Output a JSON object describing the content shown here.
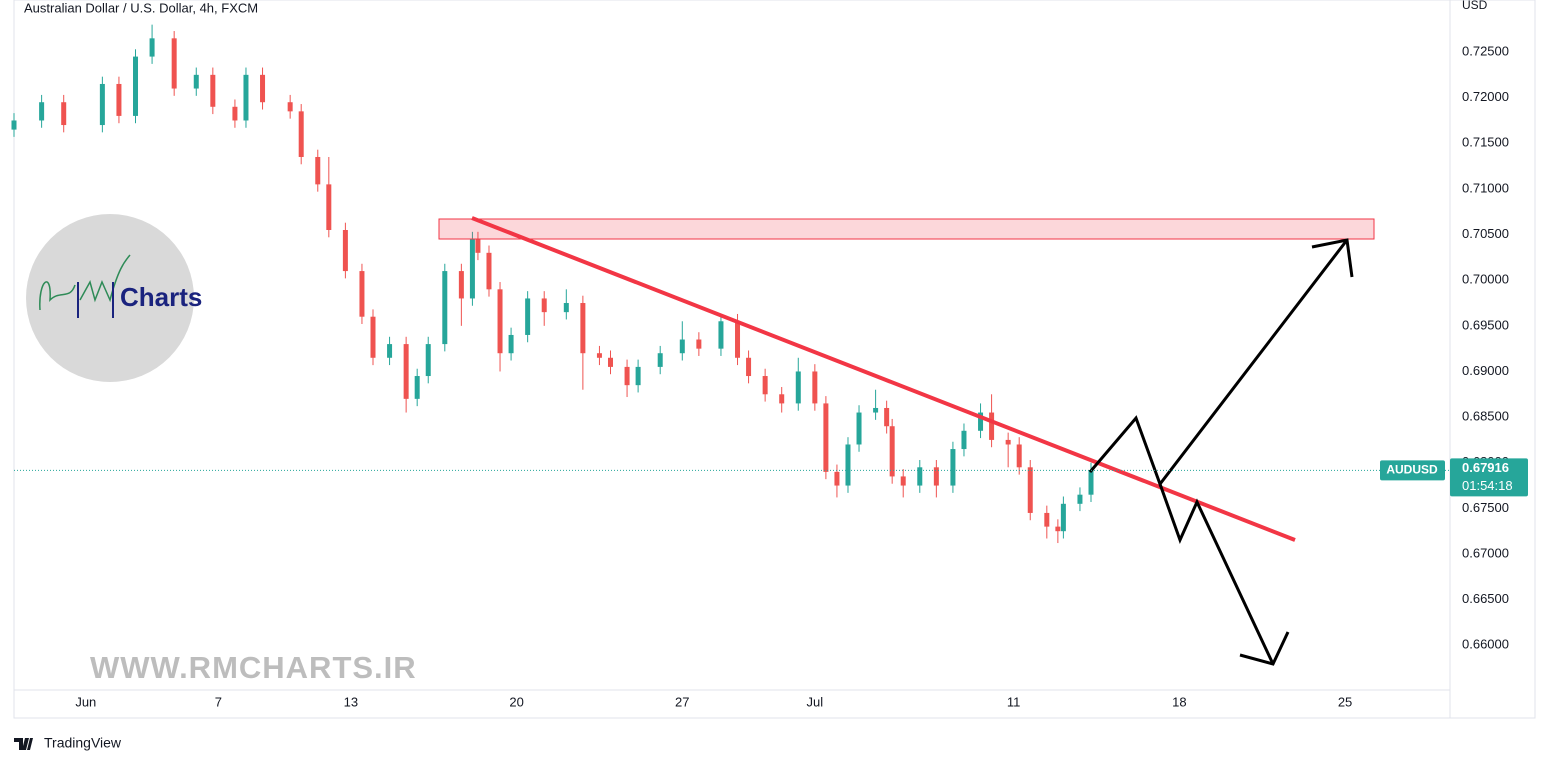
{
  "chart_data": {
    "type": "candlestick",
    "title": "Australian Dollar / U.S. Dollar, 4h, FXCM",
    "y_axis_label": "USD",
    "up_color": "#26a69a",
    "down_color": "#ef5350",
    "xlim": [
      0,
      260
    ],
    "ylim": [
      0.6551,
      0.7307
    ],
    "xticks": [
      {
        "value": 13,
        "label": "Jun"
      },
      {
        "value": 37,
        "label": "7"
      },
      {
        "value": 61,
        "label": "13"
      },
      {
        "value": 91,
        "label": "20"
      },
      {
        "value": 121,
        "label": "27"
      },
      {
        "value": 145,
        "label": "Jul"
      },
      {
        "value": 181,
        "label": "11"
      },
      {
        "value": 211,
        "label": "18"
      },
      {
        "value": 241,
        "label": "25"
      }
    ],
    "yticks": [
      {
        "value": 0.66,
        "label": "0.66000"
      },
      {
        "value": 0.665,
        "label": "0.66500"
      },
      {
        "value": 0.67,
        "label": "0.67000"
      },
      {
        "value": 0.675,
        "label": "0.67500"
      },
      {
        "value": 0.68,
        "label": "0.68000"
      },
      {
        "value": 0.685,
        "label": "0.68500"
      },
      {
        "value": 0.69,
        "label": "0.69000"
      },
      {
        "value": 0.695,
        "label": "0.69500"
      },
      {
        "value": 0.7,
        "label": "0.70000"
      },
      {
        "value": 0.705,
        "label": "0.70500"
      },
      {
        "value": 0.71,
        "label": "0.71000"
      },
      {
        "value": 0.715,
        "label": "0.71500"
      },
      {
        "value": 0.72,
        "label": "0.72000"
      },
      {
        "value": 0.725,
        "label": "0.72500"
      }
    ],
    "grid": false,
    "x": [
      0,
      5,
      9,
      16,
      19,
      22,
      25,
      29,
      33,
      36,
      40,
      42,
      45,
      50,
      52,
      55,
      57,
      60,
      63,
      65,
      68,
      71,
      73,
      75,
      78,
      81,
      83,
      84,
      86,
      88,
      90,
      93,
      96,
      100,
      103,
      106,
      108,
      111,
      113,
      117,
      121,
      124,
      128,
      131,
      133,
      136,
      139,
      142,
      145,
      147,
      149,
      151,
      153,
      156,
      158,
      159,
      161,
      164,
      167,
      170,
      172,
      175,
      177,
      180,
      182,
      184,
      187,
      189,
      190,
      193,
      195
    ],
    "open": [
      0.7165,
      0.7175,
      0.7195,
      0.717,
      0.7215,
      0.718,
      0.7245,
      0.7265,
      0.721,
      0.7225,
      0.719,
      0.7175,
      0.7225,
      0.7195,
      0.7185,
      0.7135,
      0.7105,
      0.7055,
      0.701,
      0.696,
      0.6915,
      0.693,
      0.687,
      0.6895,
      0.693,
      0.701,
      0.698,
      0.7045,
      0.703,
      0.699,
      0.692,
      0.694,
      0.698,
      0.6965,
      0.6975,
      0.692,
      0.6915,
      0.6905,
      0.6885,
      0.6905,
      0.692,
      0.6935,
      0.6925,
      0.6955,
      0.6915,
      0.6895,
      0.6875,
      0.6865,
      0.69,
      0.6865,
      0.679,
      0.6775,
      0.682,
      0.6855,
      0.686,
      0.684,
      0.6785,
      0.6775,
      0.6795,
      0.6775,
      0.6815,
      0.6835,
      0.6855,
      0.6825,
      0.682,
      0.6795,
      0.6745,
      0.673,
      0.6725,
      0.6755,
      0.6765
    ],
    "high": [
      0.7183,
      0.7203,
      0.7203,
      0.7223,
      0.7223,
      0.7253,
      0.728,
      0.7273,
      0.7233,
      0.7233,
      0.7198,
      0.7233,
      0.7233,
      0.7203,
      0.7193,
      0.7143,
      0.7135,
      0.7063,
      0.7018,
      0.6968,
      0.6938,
      0.6938,
      0.6903,
      0.6938,
      0.7018,
      0.7018,
      0.7053,
      0.7053,
      0.7038,
      0.6998,
      0.6948,
      0.6988,
      0.6988,
      0.699,
      0.6983,
      0.6928,
      0.6923,
      0.6913,
      0.6913,
      0.6928,
      0.6955,
      0.6943,
      0.6963,
      0.6963,
      0.6923,
      0.6903,
      0.6883,
      0.6915,
      0.6908,
      0.6873,
      0.6798,
      0.6828,
      0.6863,
      0.688,
      0.6868,
      0.6848,
      0.6793,
      0.6803,
      0.6803,
      0.6823,
      0.6843,
      0.6865,
      0.6875,
      0.6833,
      0.6828,
      0.6803,
      0.6753,
      0.6738,
      0.6763,
      0.6773,
      0.68
    ],
    "low": [
      0.7157,
      0.7167,
      0.7162,
      0.7162,
      0.7172,
      0.7172,
      0.7237,
      0.7202,
      0.7202,
      0.7182,
      0.7167,
      0.7167,
      0.7187,
      0.7177,
      0.7127,
      0.7097,
      0.7047,
      0.7002,
      0.6952,
      0.6907,
      0.6907,
      0.6855,
      0.6862,
      0.6887,
      0.6922,
      0.695,
      0.6972,
      0.7022,
      0.6982,
      0.69,
      0.6912,
      0.6932,
      0.695,
      0.6957,
      0.688,
      0.6907,
      0.6897,
      0.6872,
      0.6877,
      0.6897,
      0.6912,
      0.6917,
      0.6917,
      0.6907,
      0.6887,
      0.6867,
      0.6855,
      0.6857,
      0.6857,
      0.6782,
      0.6762,
      0.6767,
      0.6812,
      0.6847,
      0.6832,
      0.6777,
      0.6762,
      0.6767,
      0.6762,
      0.6767,
      0.6807,
      0.6827,
      0.6817,
      0.6795,
      0.6787,
      0.6737,
      0.6717,
      0.6712,
      0.6717,
      0.6747,
      0.6757
    ],
    "close": [
      0.7175,
      0.7195,
      0.717,
      0.7215,
      0.718,
      0.7245,
      0.7265,
      0.721,
      0.7225,
      0.719,
      0.7175,
      0.7225,
      0.7195,
      0.7185,
      0.7135,
      0.7105,
      0.7055,
      0.701,
      0.696,
      0.6915,
      0.693,
      0.687,
      0.6895,
      0.693,
      0.701,
      0.698,
      0.7045,
      0.703,
      0.699,
      0.692,
      0.694,
      0.698,
      0.6965,
      0.6975,
      0.692,
      0.6915,
      0.6905,
      0.6885,
      0.6905,
      0.692,
      0.6935,
      0.6925,
      0.6955,
      0.6915,
      0.6895,
      0.6875,
      0.6865,
      0.69,
      0.6865,
      0.679,
      0.6775,
      0.682,
      0.6855,
      0.686,
      0.684,
      0.6785,
      0.6775,
      0.6795,
      0.6775,
      0.6815,
      0.6835,
      0.6855,
      0.6825,
      0.682,
      0.6795,
      0.6745,
      0.673,
      0.6725,
      0.6755,
      0.6765,
      0.6792
    ],
    "price_tag": {
      "symbol": "AUDUSD",
      "price": 0.67916,
      "countdown": "01:54:18",
      "color": "#26a69a"
    },
    "logo_text": "Charts",
    "watermark": "WWW.RMCHARTS.IR",
    "footer": "TradingView"
  }
}
